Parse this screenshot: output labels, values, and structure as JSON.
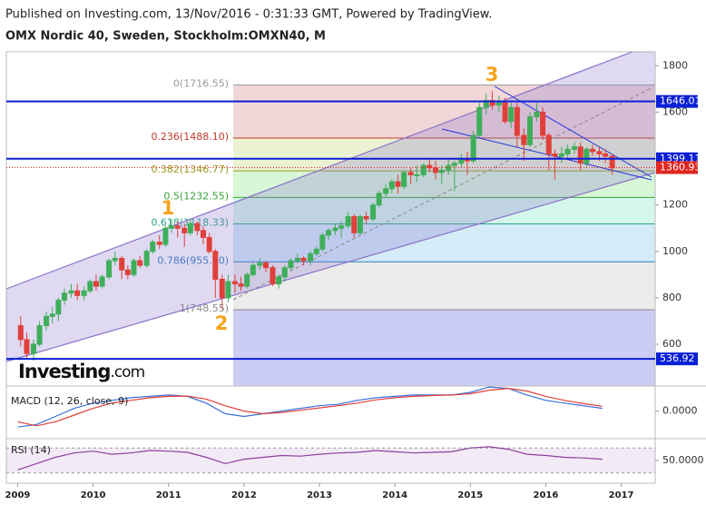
{
  "header": {
    "published": "Published on Investing.com, 13/Nov/2016 - 0:31:33 GMT, Powered by TradingView.",
    "title": "OMX Nordic 40, Sweden, Stockholm:OMXN40, M",
    "logo_main": "Investing",
    "logo_suffix": ".com"
  },
  "chart_data": [
    {
      "type": "candlestick",
      "up_color": "#3fae5a",
      "down_color": "#e0403a",
      "xlim": [
        2008.85,
        2017.45
      ],
      "xticks": [
        2009,
        2010,
        2011,
        2012,
        2013,
        2014,
        2015,
        2016,
        2017
      ],
      "ylim": [
        420,
        1860
      ],
      "yticks": [
        600,
        800,
        1000,
        1200,
        1400,
        1600,
        1800
      ],
      "x": [
        2009.04,
        2009.12,
        2009.21,
        2009.29,
        2009.38,
        2009.46,
        2009.54,
        2009.62,
        2009.71,
        2009.79,
        2009.88,
        2009.96,
        2010.04,
        2010.12,
        2010.21,
        2010.29,
        2010.38,
        2010.46,
        2010.54,
        2010.62,
        2010.71,
        2010.79,
        2010.88,
        2010.96,
        2011.04,
        2011.12,
        2011.21,
        2011.29,
        2011.38,
        2011.46,
        2011.54,
        2011.62,
        2011.71,
        2011.79,
        2011.88,
        2011.96,
        2012.04,
        2012.12,
        2012.21,
        2012.29,
        2012.38,
        2012.46,
        2012.54,
        2012.62,
        2012.71,
        2012.79,
        2012.88,
        2012.96,
        2013.04,
        2013.12,
        2013.21,
        2013.29,
        2013.38,
        2013.46,
        2013.54,
        2013.62,
        2013.71,
        2013.79,
        2013.88,
        2013.96,
        2014.04,
        2014.12,
        2014.21,
        2014.29,
        2014.38,
        2014.46,
        2014.54,
        2014.62,
        2014.71,
        2014.79,
        2014.88,
        2014.96,
        2015.04,
        2015.12,
        2015.21,
        2015.29,
        2015.38,
        2015.46,
        2015.54,
        2015.62,
        2015.71,
        2015.79,
        2015.88,
        2015.96,
        2016.04,
        2016.12,
        2016.21,
        2016.29,
        2016.38,
        2016.46,
        2016.54,
        2016.62,
        2016.71,
        2016.79,
        2016.88
      ],
      "ohlc": [
        [
          680,
          720,
          590,
          620
        ],
        [
          620,
          650,
          540,
          560
        ],
        [
          560,
          620,
          530,
          600
        ],
        [
          600,
          700,
          590,
          680
        ],
        [
          680,
          740,
          660,
          720
        ],
        [
          720,
          760,
          690,
          730
        ],
        [
          730,
          800,
          700,
          790
        ],
        [
          790,
          840,
          770,
          820
        ],
        [
          820,
          860,
          800,
          830
        ],
        [
          830,
          860,
          790,
          810
        ],
        [
          810,
          850,
          790,
          830
        ],
        [
          830,
          880,
          820,
          870
        ],
        [
          870,
          900,
          830,
          850
        ],
        [
          850,
          900,
          840,
          890
        ],
        [
          890,
          970,
          880,
          960
        ],
        [
          960,
          1000,
          940,
          970
        ],
        [
          970,
          980,
          880,
          920
        ],
        [
          920,
          940,
          880,
          900
        ],
        [
          900,
          970,
          890,
          960
        ],
        [
          960,
          980,
          930,
          940
        ],
        [
          940,
          1010,
          930,
          1000
        ],
        [
          1000,
          1050,
          990,
          1040
        ],
        [
          1040,
          1070,
          1010,
          1030
        ],
        [
          1030,
          1110,
          1020,
          1100
        ],
        [
          1100,
          1140,
          1080,
          1110
        ],
        [
          1110,
          1130,
          1060,
          1100
        ],
        [
          1100,
          1120,
          1020,
          1080
        ],
        [
          1080,
          1140,
          1070,
          1120
        ],
        [
          1120,
          1130,
          1070,
          1090
        ],
        [
          1090,
          1110,
          1030,
          1060
        ],
        [
          1060,
          1080,
          990,
          1000
        ],
        [
          1000,
          1010,
          800,
          880
        ],
        [
          880,
          900,
          750,
          800
        ],
        [
          800,
          900,
          780,
          870
        ],
        [
          870,
          900,
          820,
          860
        ],
        [
          860,
          890,
          830,
          850
        ],
        [
          850,
          910,
          840,
          900
        ],
        [
          900,
          950,
          890,
          940
        ],
        [
          940,
          970,
          920,
          950
        ],
        [
          950,
          960,
          910,
          930
        ],
        [
          930,
          940,
          850,
          860
        ],
        [
          860,
          900,
          840,
          890
        ],
        [
          890,
          940,
          870,
          930
        ],
        [
          930,
          970,
          920,
          960
        ],
        [
          960,
          990,
          950,
          970
        ],
        [
          970,
          980,
          940,
          960
        ],
        [
          960,
          1000,
          940,
          990
        ],
        [
          990,
          1020,
          980,
          1010
        ],
        [
          1010,
          1080,
          1000,
          1070
        ],
        [
          1070,
          1100,
          1050,
          1090
        ],
        [
          1090,
          1120,
          1070,
          1100
        ],
        [
          1100,
          1130,
          1060,
          1110
        ],
        [
          1110,
          1170,
          1100,
          1150
        ],
        [
          1150,
          1160,
          1060,
          1080
        ],
        [
          1080,
          1160,
          1070,
          1150
        ],
        [
          1150,
          1170,
          1120,
          1140
        ],
        [
          1140,
          1210,
          1130,
          1200
        ],
        [
          1200,
          1260,
          1190,
          1250
        ],
        [
          1250,
          1290,
          1230,
          1270
        ],
        [
          1270,
          1310,
          1250,
          1300
        ],
        [
          1300,
          1330,
          1250,
          1280
        ],
        [
          1280,
          1350,
          1270,
          1340
        ],
        [
          1340,
          1360,
          1290,
          1330
        ],
        [
          1330,
          1370,
          1300,
          1330
        ],
        [
          1330,
          1380,
          1320,
          1370
        ],
        [
          1370,
          1400,
          1340,
          1360
        ],
        [
          1360,
          1390,
          1310,
          1340
        ],
        [
          1340,
          1370,
          1290,
          1350
        ],
        [
          1350,
          1400,
          1330,
          1370
        ],
        [
          1370,
          1390,
          1260,
          1380
        ],
        [
          1380,
          1420,
          1360,
          1400
        ],
        [
          1400,
          1430,
          1330,
          1390
        ],
        [
          1390,
          1520,
          1380,
          1500
        ],
        [
          1500,
          1640,
          1490,
          1620
        ],
        [
          1620,
          1680,
          1590,
          1650
        ],
        [
          1650,
          1690,
          1610,
          1630
        ],
        [
          1630,
          1670,
          1600,
          1640
        ],
        [
          1640,
          1660,
          1550,
          1560
        ],
        [
          1560,
          1640,
          1530,
          1620
        ],
        [
          1620,
          1640,
          1450,
          1500
        ],
        [
          1500,
          1530,
          1390,
          1460
        ],
        [
          1460,
          1600,
          1450,
          1580
        ],
        [
          1580,
          1640,
          1560,
          1600
        ],
        [
          1600,
          1620,
          1480,
          1500
        ],
        [
          1500,
          1510,
          1350,
          1420
        ],
        [
          1420,
          1440,
          1310,
          1410
        ],
        [
          1410,
          1450,
          1380,
          1420
        ],
        [
          1420,
          1460,
          1400,
          1440
        ],
        [
          1440,
          1470,
          1420,
          1450
        ],
        [
          1450,
          1470,
          1350,
          1380
        ],
        [
          1380,
          1450,
          1360,
          1440
        ],
        [
          1440,
          1460,
          1410,
          1430
        ],
        [
          1430,
          1450,
          1390,
          1420
        ],
        [
          1420,
          1440,
          1380,
          1410
        ],
        [
          1410,
          1420,
          1330,
          1360
        ]
      ],
      "price_lines": [
        {
          "value": 1646.01,
          "color": "#0a1fd6"
        },
        {
          "value": 1399.11,
          "color": "#0a1fd6"
        },
        {
          "value": 536.92,
          "color": "#0a1fd6"
        }
      ],
      "last_price": {
        "value": 1360.93,
        "color": "#e0261f"
      },
      "fib": [
        {
          "price": 1716.55,
          "label": "0(1716.55)",
          "line": "#999999",
          "band": "rgba(215,140,140,0.35)"
        },
        {
          "price": 1488.1,
          "label": "0.236(1488.10)",
          "line": "#c0392b",
          "band": "rgba(215,230,165,0.5)"
        },
        {
          "price": 1346.77,
          "label": "0.382(1346.77)",
          "line": "#9a9a20",
          "band": "rgba(175,240,175,0.5)"
        },
        {
          "price": 1232.55,
          "label": "0.5(1232.55)",
          "line": "#3aa33a",
          "band": "rgba(170,240,215,0.5)"
        },
        {
          "price": 1118.33,
          "label": "0.618(1118.33)",
          "line": "#2aa58a",
          "band": "rgba(175,220,240,0.55)"
        },
        {
          "price": 955.1,
          "label": "0.786(955.10)",
          "line": "#2c7fc0",
          "band": "rgba(220,220,220,0.55)"
        },
        {
          "price": 748.55,
          "label": "1(748.55)",
          "line": "#888888",
          "band": "rgba(140,145,230,0.45)"
        }
      ],
      "annotations": [
        "1",
        "2",
        "3"
      ],
      "annotation_color": "#f7a11b"
    },
    {
      "type": "line",
      "title": "MACD (12, 26, close, 9)",
      "ylim": [
        -100,
        87
      ],
      "yticks": [
        {
          "value": 0,
          "label": "0.0000"
        }
      ],
      "x": [
        2009.0,
        2009.25,
        2009.5,
        2009.75,
        2010.0,
        2010.25,
        2010.5,
        2010.75,
        2011.0,
        2011.25,
        2011.5,
        2011.75,
        2012.0,
        2012.25,
        2012.5,
        2012.75,
        2013.0,
        2013.25,
        2013.5,
        2013.75,
        2014.0,
        2014.25,
        2014.5,
        2014.75,
        2015.0,
        2015.25,
        2015.5,
        2015.75,
        2016.0,
        2016.25,
        2016.5,
        2016.75
      ],
      "series": [
        {
          "color": "#3b6fd8",
          "values": [
            -60,
            -50,
            -20,
            10,
            30,
            40,
            50,
            55,
            60,
            55,
            30,
            -10,
            -20,
            -10,
            0,
            10,
            20,
            25,
            40,
            50,
            55,
            60,
            60,
            60,
            70,
            90,
            85,
            60,
            40,
            30,
            20,
            10
          ]
        },
        {
          "color": "#e0403a",
          "values": [
            -40,
            -55,
            -40,
            -15,
            10,
            30,
            40,
            50,
            55,
            56,
            45,
            20,
            0,
            -10,
            -5,
            3,
            12,
            20,
            30,
            42,
            50,
            55,
            58,
            60,
            65,
            78,
            85,
            75,
            55,
            40,
            28,
            18
          ]
        }
      ]
    },
    {
      "type": "line",
      "title": "RSI (14)",
      "ylim": [
        15,
        82
      ],
      "yticks": [
        {
          "value": 50,
          "label": "50.0000"
        }
      ],
      "bands": [
        30,
        70
      ],
      "x": [
        2009.0,
        2009.25,
        2009.5,
        2009.75,
        2010.0,
        2010.25,
        2010.5,
        2010.75,
        2011.0,
        2011.25,
        2011.5,
        2011.75,
        2012.0,
        2012.25,
        2012.5,
        2012.75,
        2013.0,
        2013.25,
        2013.5,
        2013.75,
        2014.0,
        2014.25,
        2014.5,
        2014.75,
        2015.0,
        2015.25,
        2015.5,
        2015.75,
        2016.0,
        2016.25,
        2016.5,
        2016.75
      ],
      "series": [
        {
          "color": "#8e3fa0",
          "values": [
            35,
            45,
            55,
            62,
            65,
            60,
            62,
            66,
            65,
            63,
            55,
            45,
            52,
            55,
            58,
            57,
            60,
            62,
            63,
            66,
            64,
            62,
            63,
            64,
            70,
            72,
            68,
            60,
            58,
            55,
            54,
            52
          ]
        }
      ]
    }
  ]
}
